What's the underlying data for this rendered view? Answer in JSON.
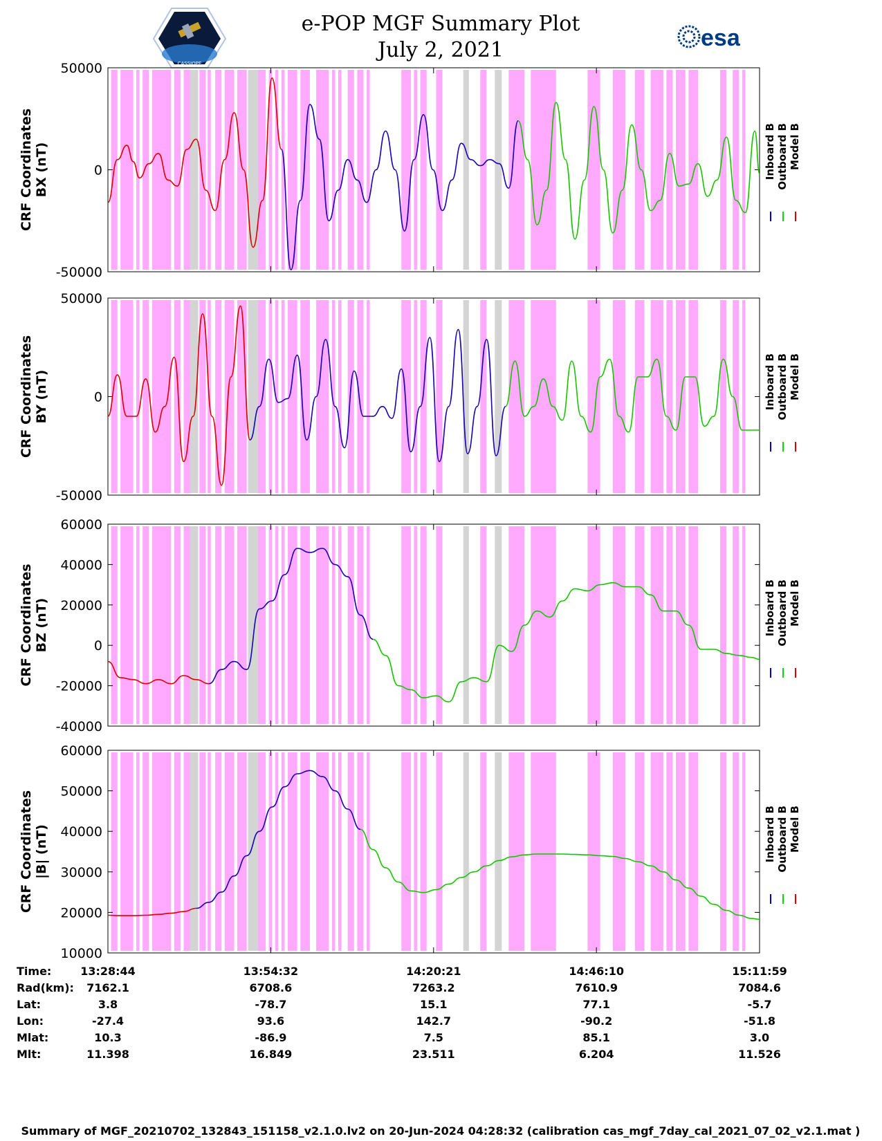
{
  "header": {
    "title_line1": "e-POP MGF Summary Plot",
    "title_line2": "July 2, 2021",
    "logo_left_text": "CASSIOPE",
    "logo_right_text": "esa"
  },
  "colors": {
    "inboard": "#0000cc",
    "outboard": "#00dd00",
    "model": "#dd0000",
    "magenta_band": "#ffaaff",
    "gray_band": "#d4d4d4"
  },
  "chart_data": [
    {
      "type": "line",
      "ylabel": [
        "CRF Coordinates",
        "BX (nT)"
      ],
      "ylim": [
        -50000,
        50000
      ],
      "yticks": [
        -50000,
        0,
        50000
      ],
      "ytick_labels": [
        "-50000",
        "0",
        "50000"
      ],
      "legend": [
        "Inboard B",
        "Outboard B",
        "Model B"
      ],
      "x_minutes": [
        0,
        1.5,
        3,
        4,
        5,
        6.5,
        8,
        9.5,
        11,
        12.5,
        14,
        15.5,
        17,
        18.5,
        20,
        21.5,
        23,
        24.5,
        26,
        27.5,
        29,
        30.5,
        32,
        33.5,
        35,
        36.5,
        38,
        39.5,
        41,
        42.5,
        44,
        45.5,
        47,
        48.5,
        50,
        51.5,
        53,
        54.5,
        56,
        57.5,
        59,
        60.5,
        62,
        63.5,
        65,
        66.5,
        68,
        69.5,
        71,
        72.5,
        74,
        75.5,
        77,
        78.5,
        80,
        81.5,
        83,
        84.5,
        86,
        87.5,
        89,
        90.5,
        92,
        93.5,
        95,
        96.5,
        98,
        99.5,
        101,
        102.5,
        103.25
      ],
      "values": [
        -16000,
        5000,
        12000,
        4000,
        -4000,
        3000,
        8000,
        -5000,
        -8000,
        10000,
        15000,
        -10000,
        -20000,
        5000,
        28000,
        0,
        -38000,
        -15000,
        45000,
        10000,
        -49000,
        -15000,
        32000,
        15000,
        -25000,
        -10000,
        5000,
        -5000,
        -16000,
        0,
        19000,
        0,
        -30000,
        5000,
        27000,
        0,
        -20000,
        -5000,
        13000,
        5000,
        2000,
        5000,
        3000,
        -9000,
        24000,
        5000,
        -27000,
        -10000,
        33000,
        5000,
        -34000,
        -5000,
        31000,
        0,
        -31000,
        -10000,
        22000,
        0,
        -20000,
        -15000,
        8000,
        -8000,
        -7000,
        3000,
        -13000,
        -5000,
        16000,
        -15000,
        -21000,
        19000,
        -2000
      ],
      "series_colors": {
        "0-19": "model",
        "19-44": "inboard",
        "44-71": "outboard"
      }
    },
    {
      "type": "line",
      "ylabel": [
        "CRF Coordinates",
        "BY (nT)"
      ],
      "ylim": [
        -50000,
        50000
      ],
      "yticks": [
        -50000,
        0,
        50000
      ],
      "ytick_labels": [
        "-50000",
        "0",
        "50000"
      ],
      "legend": [
        "Inboard B",
        "Outboard B",
        "Model B"
      ],
      "x_minutes": [
        0,
        1.5,
        3,
        4.5,
        6,
        7.5,
        9,
        10.5,
        12,
        13.5,
        15,
        16.5,
        18,
        19.5,
        21,
        22.5,
        24,
        25.5,
        27,
        28.5,
        30,
        31.5,
        33,
        34.5,
        36,
        37.5,
        39,
        40.5,
        42,
        43.5,
        45,
        46.5,
        48,
        49.5,
        51,
        52.5,
        54,
        55.5,
        57,
        58.5,
        60,
        61.5,
        63,
        64.5,
        66,
        67.5,
        69,
        70.5,
        72,
        73.5,
        75,
        76.5,
        78,
        79.5,
        81,
        82.5,
        84,
        85.5,
        87,
        88.5,
        90,
        91.5,
        93,
        94.5,
        96,
        97.5,
        99,
        100.5,
        102,
        103.25
      ],
      "values": [
        -10000,
        11000,
        -10000,
        -10000,
        9000,
        -18000,
        -5000,
        20000,
        -33000,
        -10000,
        42000,
        -10000,
        -45000,
        10000,
        46000,
        -22000,
        -5000,
        19000,
        -3000,
        -1000,
        21000,
        -22000,
        0,
        29000,
        -5000,
        -26000,
        13000,
        -10000,
        -10000,
        -5000,
        -11000,
        14000,
        -28000,
        -5000,
        30000,
        -33000,
        -5000,
        34000,
        -29000,
        -5000,
        29000,
        -30000,
        -5000,
        18000,
        -10000,
        -5000,
        9000,
        -5000,
        -12000,
        18000,
        -10000,
        -18000,
        10000,
        19000,
        -10000,
        -18000,
        10000,
        10000,
        19000,
        -10000,
        -17000,
        10000,
        10000,
        -15000,
        -10000,
        19000,
        0,
        -17000,
        -17000,
        -17000
      ],
      "series_colors": {
        "0-15": "model",
        "15-42": "inboard",
        "42-70": "outboard"
      }
    },
    {
      "type": "line",
      "ylabel": [
        "CRF Coordinates",
        "BZ (nT)"
      ],
      "ylim": [
        -40000,
        60000
      ],
      "yticks": [
        -40000,
        -20000,
        0,
        20000,
        40000,
        60000
      ],
      "ytick_labels": [
        "-40000",
        "-20000",
        "0",
        "20000",
        "40000",
        "60000"
      ],
      "legend": [
        "Inboard B",
        "Outboard B",
        "Model B"
      ],
      "x_minutes": [
        0,
        2,
        4,
        6,
        8,
        10,
        12,
        14,
        16,
        18,
        20,
        22,
        24,
        26,
        28,
        30,
        32,
        34,
        36,
        38,
        40,
        42,
        44,
        46,
        48,
        50,
        52,
        54,
        56,
        58,
        60,
        62,
        64,
        66,
        68,
        70,
        72,
        74,
        76,
        78,
        80,
        82,
        84,
        86,
        88,
        90,
        92,
        94,
        96,
        98,
        100,
        102,
        103.25
      ],
      "values": [
        -8000,
        -16000,
        -17000,
        -19000,
        -17000,
        -19000,
        -15000,
        -17000,
        -19000,
        -12000,
        -8000,
        -12000,
        18000,
        22000,
        35000,
        48000,
        46000,
        48000,
        40000,
        34000,
        15000,
        3000,
        -5000,
        -20000,
        -22000,
        -26000,
        -25000,
        -28000,
        -18000,
        -16000,
        -18000,
        0,
        -3000,
        10000,
        17000,
        14000,
        22000,
        28000,
        27000,
        30000,
        31000,
        29000,
        29000,
        25000,
        17000,
        17000,
        10000,
        -2000,
        -2000,
        -4000,
        -5000,
        -6000,
        -7000
      ],
      "series_colors": {
        "0-8": "model",
        "8-21": "inboard",
        "21-53": "outboard"
      }
    },
    {
      "type": "line",
      "ylabel": [
        "CRF Coordinates",
        "|B| (nT)"
      ],
      "ylim": [
        10000,
        60000
      ],
      "yticks": [
        10000,
        20000,
        30000,
        40000,
        50000,
        60000
      ],
      "ytick_labels": [
        "10000",
        "20000",
        "30000",
        "40000",
        "50000",
        "60000"
      ],
      "legend": [
        "Inboard B",
        "Outboard B",
        "Model B"
      ],
      "x_minutes": [
        0,
        2,
        4,
        6,
        8,
        10,
        12,
        14,
        16,
        18,
        20,
        22,
        24,
        26,
        28,
        30,
        32,
        34,
        36,
        38,
        40,
        42,
        44,
        46,
        48,
        50,
        52,
        54,
        56,
        58,
        60,
        62,
        64,
        66,
        68,
        70,
        72,
        74,
        76,
        78,
        80,
        82,
        84,
        86,
        88,
        90,
        92,
        94,
        96,
        98,
        100,
        102,
        103.25
      ],
      "values": [
        19300,
        19200,
        19200,
        19300,
        19500,
        19800,
        20200,
        21000,
        22500,
        25000,
        29000,
        34000,
        40000,
        46000,
        51000,
        54200,
        55000,
        53500,
        50000,
        45500,
        40500,
        35500,
        31000,
        27500,
        25300,
        24900,
        25600,
        27000,
        28600,
        30000,
        31500,
        32800,
        33700,
        34200,
        34400,
        34400,
        34400,
        34300,
        34200,
        34000,
        33800,
        33300,
        32500,
        31500,
        30000,
        28000,
        26000,
        24000,
        22000,
        20500,
        19300,
        18500,
        18300
      ],
      "series_colors": {
        "0-7": "model",
        "7-20": "inboard",
        "20-53": "outboard"
      }
    }
  ],
  "time_axis": {
    "minutes_span": 103.25,
    "tick_minutes": [
      0,
      25.8,
      51.6,
      77.4,
      103.25
    ]
  },
  "bands": {
    "magenta_minutes": [
      [
        0.5,
        1.5
      ],
      [
        2,
        4
      ],
      [
        4.5,
        5
      ],
      [
        5.5,
        6.5
      ],
      [
        7,
        10
      ],
      [
        10.5,
        11.5
      ],
      [
        12,
        14
      ],
      [
        14.5,
        15.5
      ],
      [
        15.8,
        16.3
      ],
      [
        17,
        18
      ],
      [
        18.5,
        20
      ],
      [
        20.5,
        22
      ],
      [
        22.5,
        23
      ],
      [
        23.5,
        25
      ],
      [
        25.5,
        26
      ],
      [
        26.5,
        27
      ],
      [
        27.5,
        28
      ],
      [
        28.5,
        30
      ],
      [
        30.5,
        32
      ],
      [
        33,
        35
      ],
      [
        35.5,
        36
      ],
      [
        36.5,
        37
      ],
      [
        38,
        39
      ],
      [
        39.5,
        40.5
      ],
      [
        41,
        41.5
      ],
      [
        46.5,
        48
      ],
      [
        48.5,
        49
      ],
      [
        49.5,
        50.5
      ],
      [
        52,
        53
      ],
      [
        59,
        60
      ],
      [
        63.5,
        66
      ],
      [
        67,
        71
      ],
      [
        76,
        78
      ],
      [
        80,
        82
      ],
      [
        83.5,
        85
      ],
      [
        86,
        88
      ],
      [
        88.5,
        89.5
      ],
      [
        90,
        91.5
      ],
      [
        92,
        93.5
      ],
      [
        97,
        98
      ],
      [
        99,
        100
      ],
      [
        100.5,
        101
      ]
    ],
    "gray_minutes": [
      [
        13,
        14.3
      ],
      [
        22.2,
        23.8
      ],
      [
        56.3,
        57.2
      ],
      [
        61.3,
        62.4
      ]
    ]
  },
  "table": {
    "row_labels": [
      "Time:",
      "Rad(km):",
      "Lat:",
      "Lon:",
      "Mlat:",
      "Mlt:"
    ],
    "columns": [
      [
        "13:28:44",
        "7162.1",
        "3.8",
        "-27.4",
        "10.3",
        "11.398"
      ],
      [
        "13:54:32",
        "6708.6",
        "-78.7",
        "93.6",
        "-86.9",
        "16.849"
      ],
      [
        "14:20:21",
        "7263.2",
        "15.1",
        "142.7",
        "7.5",
        "23.511"
      ],
      [
        "14:46:10",
        "7610.9",
        "77.1",
        "-90.2",
        "85.1",
        "6.204"
      ],
      [
        "15:11:59",
        "7084.6",
        "-5.7",
        "-51.8",
        "3.0",
        "11.526"
      ]
    ]
  },
  "footer": {
    "text": "Summary of MGF_20210702_132843_151158_v2.1.0.lv2 on 20-Jun-2024 04:28:32 (calibration cas_mgf_7day_cal_2021_07_02_v2.1.mat )"
  }
}
